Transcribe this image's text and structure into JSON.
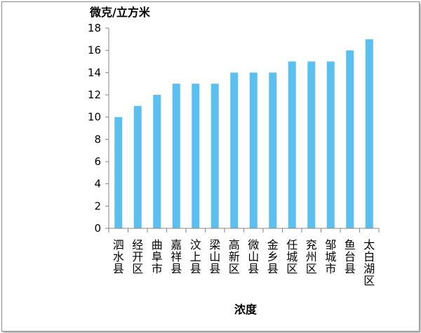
{
  "chart_data": {
    "type": "bar",
    "title": "",
    "ylabel": "微克/立方米",
    "xlabel": "浓度",
    "ylim": [
      0,
      18
    ],
    "yticks": [
      0,
      2,
      4,
      6,
      8,
      10,
      12,
      14,
      16,
      18
    ],
    "grid": false,
    "legend": "none",
    "bar_color": "#5bc0f0",
    "categories": [
      "泗水县",
      "经开区",
      "曲阜市",
      "嘉祥县",
      "汶上县",
      "梁山县",
      "高新区",
      "微山县",
      "金乡县",
      "任城区",
      "兖州区",
      "邹城市",
      "鱼台县",
      "太白湖区"
    ],
    "values": [
      10,
      11,
      12,
      13,
      13,
      13,
      14,
      14,
      14,
      15,
      15,
      15,
      16,
      17
    ]
  }
}
